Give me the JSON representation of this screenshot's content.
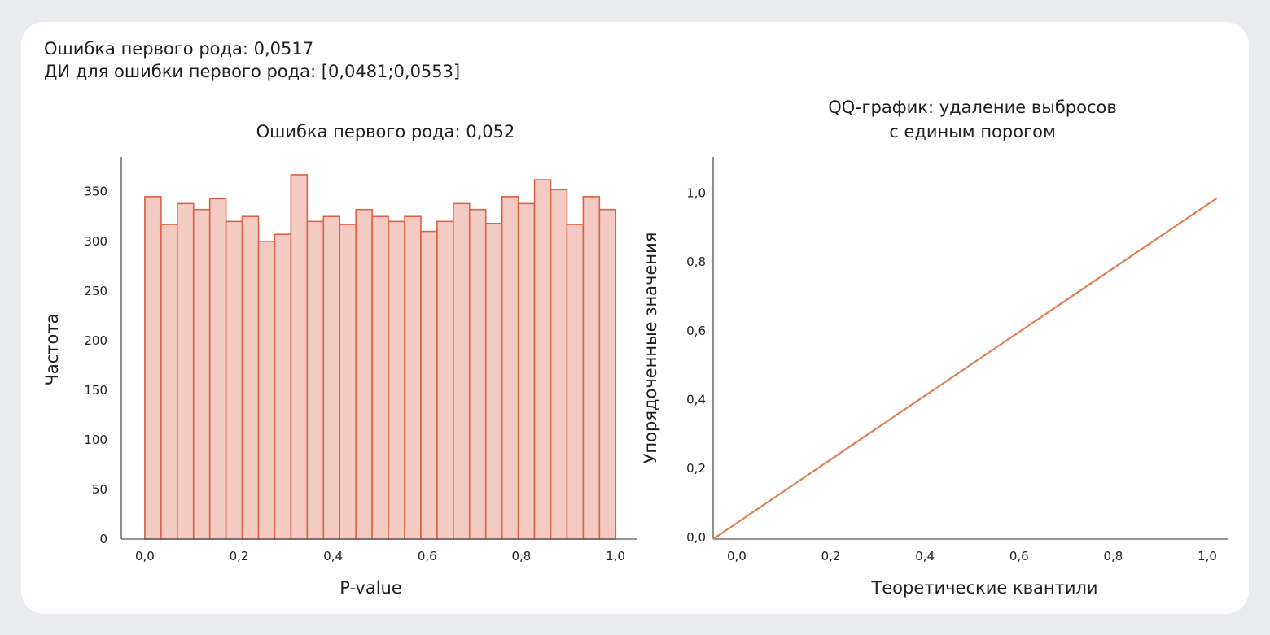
{
  "summary": {
    "line1": "Ошибка первого рода: 0,0517",
    "line2": "ДИ для ошибки первого рода: [0,0481;0,0553]"
  },
  "colors": {
    "bar_fill": "#f4cbc3",
    "bar_stroke": "#df5f47",
    "qq_line": "#e07a4f",
    "axis": "#555555",
    "background": "#e9ebee"
  },
  "chart_data": [
    {
      "type": "bar",
      "title": "Ошибка первого рода: 0,052",
      "xlabel": "P-value",
      "ylabel": "Частота",
      "xlim": [
        -0.05,
        1.045
      ],
      "ylim": [
        0,
        385
      ],
      "x_ticks": [
        "0,0",
        "0,2",
        "0,4",
        "0,6",
        "0,8",
        "1,0"
      ],
      "x_tick_values": [
        0,
        0.2,
        0.4,
        0.6,
        0.8,
        1.0
      ],
      "y_ticks": [
        "0",
        "50",
        "100",
        "150",
        "200",
        "250",
        "300",
        "350"
      ],
      "y_tick_values": [
        0,
        50,
        100,
        150,
        200,
        250,
        300,
        350
      ],
      "bin_width": 0.0345,
      "values": [
        345,
        317,
        338,
        332,
        343,
        320,
        325,
        300,
        307,
        367,
        320,
        325,
        317,
        332,
        325,
        320,
        325,
        310,
        320,
        338,
        332,
        318,
        345,
        338,
        362,
        352,
        317,
        345,
        332
      ],
      "grid": false
    },
    {
      "type": "line",
      "title": "QQ-график: удаление выбросов с единым порогом",
      "title_lines": [
        "QQ-график: удаление выбросов",
        "с единым порогом"
      ],
      "xlabel": "Теоретические квантили",
      "ylabel": "Упорядоченные значения",
      "xlim": [
        -0.05,
        1.045
      ],
      "ylim": [
        -0.005,
        1.105
      ],
      "x_ticks": [
        "0,0",
        "0,2",
        "0,4",
        "0,6",
        "0,8",
        "1,0"
      ],
      "x_tick_values": [
        0,
        0.2,
        0.4,
        0.6,
        0.8,
        1.0
      ],
      "y_ticks": [
        "0,0",
        "0,2",
        "0,4",
        "0,6",
        "0,8",
        "1,0"
      ],
      "y_tick_values": [
        0,
        0.2,
        0.4,
        0.6,
        0.8,
        1.0
      ],
      "series": [
        {
          "x": [
            -0.05,
            1.02
          ],
          "y": [
            -0.005,
            0.985
          ]
        }
      ],
      "grid": false
    }
  ]
}
